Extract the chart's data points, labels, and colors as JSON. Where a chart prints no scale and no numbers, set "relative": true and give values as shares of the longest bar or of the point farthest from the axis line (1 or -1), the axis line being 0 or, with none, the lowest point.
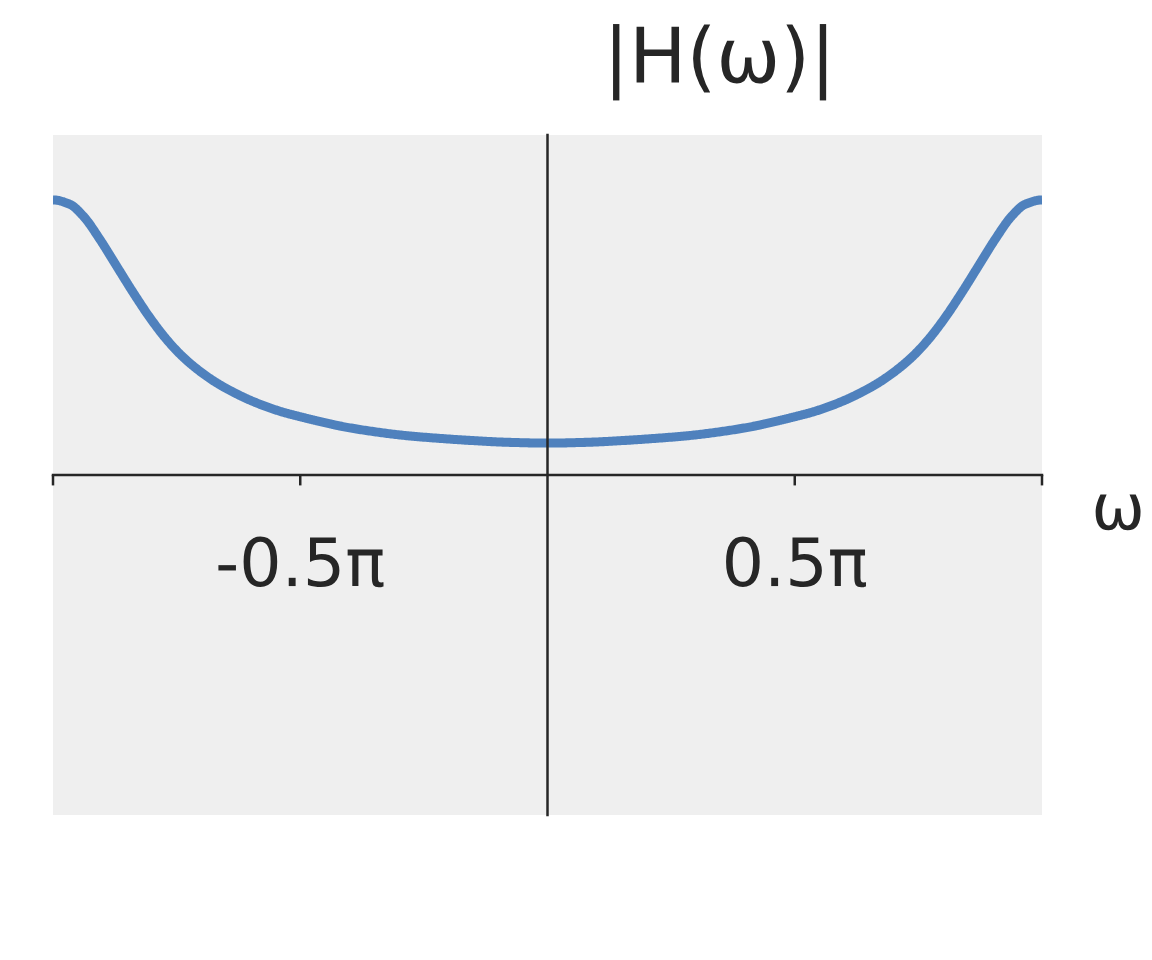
{
  "chart_data": {
    "type": "line",
    "relative": true,
    "ylabel": "|H(ω)|",
    "xlabel": "ω",
    "x": [
      -3.1416,
      -3.034,
      -2.949,
      -2.843,
      -2.737,
      -2.632,
      -2.526,
      -2.419,
      -2.314,
      -2.208,
      -2.102,
      -1.996,
      -1.89,
      -1.784,
      -1.679,
      -1.572,
      -1.466,
      -1.382,
      -1.318,
      -1.107,
      -0.895,
      -0.683,
      -0.471,
      -0.259,
      0,
      0.259,
      0.471,
      0.683,
      0.895,
      1.107,
      1.318,
      1.382,
      1.466,
      1.572,
      1.679,
      1.784,
      1.89,
      1.996,
      2.102,
      2.208,
      2.314,
      2.419,
      2.526,
      2.632,
      2.737,
      2.843,
      2.949,
      3.034,
      3.1416
    ],
    "series": [
      {
        "color": "#4f81bd",
        "values": [
          1.0,
          0.984,
          0.941,
          0.856,
          0.759,
          0.663,
          0.572,
          0.492,
          0.428,
          0.377,
          0.335,
          0.301,
          0.272,
          0.248,
          0.228,
          0.212,
          0.197,
          0.186,
          0.178,
          0.158,
          0.143,
          0.133,
          0.125,
          0.119,
          0.116,
          0.119,
          0.125,
          0.133,
          0.143,
          0.158,
          0.178,
          0.186,
          0.197,
          0.212,
          0.228,
          0.248,
          0.272,
          0.301,
          0.335,
          0.377,
          0.428,
          0.492,
          0.572,
          0.663,
          0.759,
          0.856,
          0.941,
          0.984,
          1.0
        ]
      }
    ],
    "xlim": [
      -3.1416,
      3.1416
    ],
    "xticks": [
      {
        "value": -3.1416,
        "label": null
      },
      {
        "value": -1.5708,
        "label": "-0.5π"
      },
      {
        "value": 1.5708,
        "label": "0.5π"
      },
      {
        "value": 3.1416,
        "label": null
      }
    ]
  }
}
